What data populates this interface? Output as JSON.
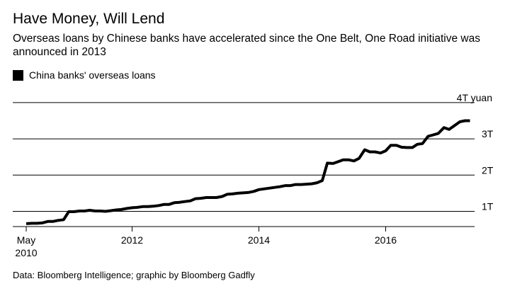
{
  "title": "Have Money, Will Lend",
  "subtitle": "Overseas loans by Chinese banks have accelerated since the One Belt, One Road initiative was announced in 2013",
  "legend": {
    "label": "China banks' overseas loans",
    "color": "#000000"
  },
  "source": "Data: Bloomberg Intelligence; graphic by Bloomberg Gadfly",
  "chart_data": {
    "type": "line",
    "title": "Have Money, Will Lend",
    "xlabel": "",
    "ylabel": "",
    "unit": "trillion yuan",
    "xlim": [
      2010.33,
      2017.5
    ],
    "ylim": [
      0.62,
      4.1
    ],
    "grid": true,
    "legend_position": "top-left",
    "yticks": [
      {
        "value": 1,
        "label": "1T"
      },
      {
        "value": 2,
        "label": "2T"
      },
      {
        "value": 3,
        "label": "3T"
      },
      {
        "value": 4,
        "label": "4T yuan"
      }
    ],
    "xticks": [
      {
        "value": 2010.33,
        "label": "May",
        "label2": "2010"
      },
      {
        "value": 2012.0,
        "label": "2012"
      },
      {
        "value": 2014.0,
        "label": "2014"
      },
      {
        "value": 2016.0,
        "label": "2016"
      }
    ],
    "series": [
      {
        "name": "China banks' overseas loans",
        "color": "#000000",
        "points": [
          [
            2010.33,
            0.66
          ],
          [
            2010.42,
            0.67
          ],
          [
            2010.5,
            0.67
          ],
          [
            2010.58,
            0.68
          ],
          [
            2010.67,
            0.72
          ],
          [
            2010.75,
            0.72
          ],
          [
            2010.83,
            0.75
          ],
          [
            2010.92,
            0.77
          ],
          [
            2011.0,
            0.99
          ],
          [
            2011.08,
            0.99
          ],
          [
            2011.17,
            1.01
          ],
          [
            2011.25,
            1.01
          ],
          [
            2011.33,
            1.03
          ],
          [
            2011.42,
            1.01
          ],
          [
            2011.5,
            1.01
          ],
          [
            2011.58,
            1.0
          ],
          [
            2011.67,
            1.02
          ],
          [
            2011.75,
            1.04
          ],
          [
            2011.83,
            1.05
          ],
          [
            2011.92,
            1.08
          ],
          [
            2012.0,
            1.1
          ],
          [
            2012.08,
            1.11
          ],
          [
            2012.17,
            1.13
          ],
          [
            2012.25,
            1.13
          ],
          [
            2012.33,
            1.14
          ],
          [
            2012.42,
            1.16
          ],
          [
            2012.5,
            1.19
          ],
          [
            2012.58,
            1.19
          ],
          [
            2012.67,
            1.24
          ],
          [
            2012.75,
            1.25
          ],
          [
            2012.83,
            1.27
          ],
          [
            2012.92,
            1.29
          ],
          [
            2013.0,
            1.35
          ],
          [
            2013.08,
            1.36
          ],
          [
            2013.17,
            1.38
          ],
          [
            2013.25,
            1.38
          ],
          [
            2013.33,
            1.38
          ],
          [
            2013.42,
            1.41
          ],
          [
            2013.5,
            1.47
          ],
          [
            2013.58,
            1.48
          ],
          [
            2013.67,
            1.5
          ],
          [
            2013.75,
            1.51
          ],
          [
            2013.83,
            1.52
          ],
          [
            2013.92,
            1.55
          ],
          [
            2014.0,
            1.6
          ],
          [
            2014.08,
            1.62
          ],
          [
            2014.17,
            1.64
          ],
          [
            2014.25,
            1.66
          ],
          [
            2014.33,
            1.68
          ],
          [
            2014.42,
            1.71
          ],
          [
            2014.5,
            1.71
          ],
          [
            2014.58,
            1.74
          ],
          [
            2014.67,
            1.74
          ],
          [
            2014.75,
            1.75
          ],
          [
            2014.83,
            1.76
          ],
          [
            2014.92,
            1.79
          ],
          [
            2015.0,
            1.85
          ],
          [
            2015.08,
            2.33
          ],
          [
            2015.17,
            2.32
          ],
          [
            2015.25,
            2.37
          ],
          [
            2015.33,
            2.42
          ],
          [
            2015.42,
            2.42
          ],
          [
            2015.5,
            2.39
          ],
          [
            2015.58,
            2.46
          ],
          [
            2015.67,
            2.7
          ],
          [
            2015.75,
            2.64
          ],
          [
            2015.83,
            2.64
          ],
          [
            2015.92,
            2.61
          ],
          [
            2016.0,
            2.67
          ],
          [
            2016.08,
            2.82
          ],
          [
            2016.17,
            2.82
          ],
          [
            2016.25,
            2.77
          ],
          [
            2016.33,
            2.76
          ],
          [
            2016.42,
            2.76
          ],
          [
            2016.5,
            2.85
          ],
          [
            2016.58,
            2.87
          ],
          [
            2016.67,
            3.07
          ],
          [
            2016.75,
            3.11
          ],
          [
            2016.83,
            3.15
          ],
          [
            2016.92,
            3.31
          ],
          [
            2017.0,
            3.26
          ],
          [
            2017.08,
            3.36
          ],
          [
            2017.17,
            3.47
          ],
          [
            2017.25,
            3.5
          ],
          [
            2017.33,
            3.5
          ]
        ]
      }
    ]
  }
}
